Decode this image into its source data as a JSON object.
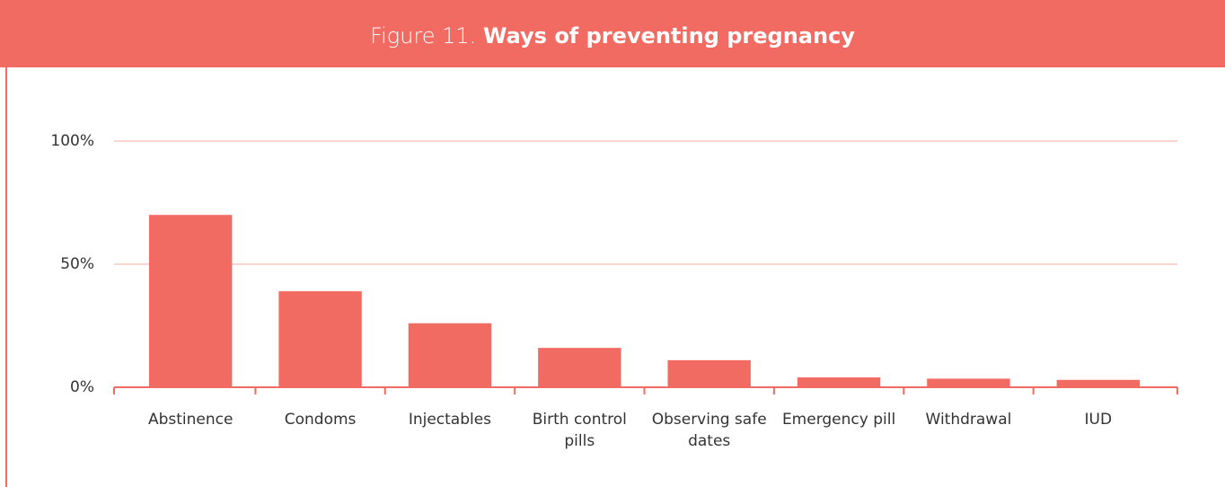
{
  "chart_data": {
    "type": "bar",
    "figure_label": "Figure 11.",
    "title": "Ways of preventing pregnancy",
    "categories": [
      "Abstinence",
      "Condoms",
      "Injectables",
      "Birth control pills",
      "Observing safe dates",
      "Emergency pill",
      "Withdrawal",
      "IUD"
    ],
    "values": [
      70,
      39,
      26,
      16,
      11,
      4,
      3.5,
      3
    ],
    "color": "#f26b63",
    "ylim": [
      0,
      100
    ],
    "yticks": [
      {
        "value": 0,
        "label": "0%"
      },
      {
        "value": 50,
        "label": "50%"
      },
      {
        "value": 100,
        "label": "100%"
      }
    ],
    "grid": true
  }
}
